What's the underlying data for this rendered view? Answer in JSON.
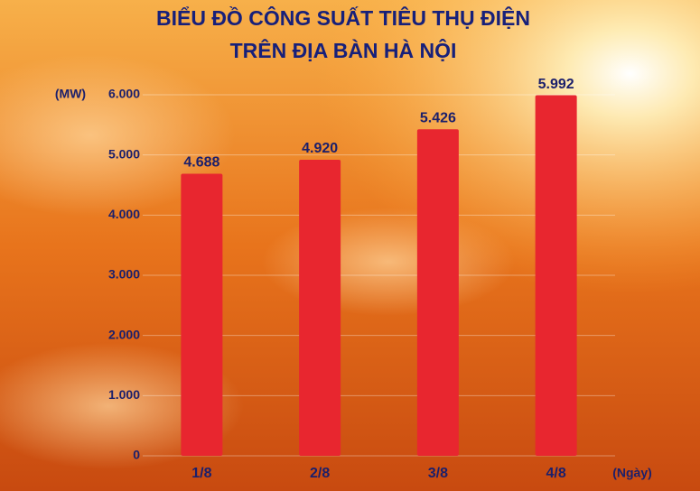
{
  "chart_data": {
    "type": "bar",
    "title_lines": [
      "BIỂU ĐỒ CÔNG SUẤT TIÊU THỤ ĐIỆN",
      "TRÊN ĐỊA BÀN HÀ NỘI"
    ],
    "y_label": "(MW)",
    "x_label": "(Ngày)",
    "categories": [
      "1/8",
      "2/8",
      "3/8",
      "4/8"
    ],
    "values": [
      4688,
      4920,
      5426,
      5992
    ],
    "value_labels": [
      "4.688",
      "4.920",
      "5.426",
      "5.992"
    ],
    "color": "#e8262f",
    "ylim": [
      0,
      6000
    ],
    "yticks": [
      0,
      {
        "value": 1000,
        "label": "1.000"
      },
      {
        "value": 2000,
        "label": "2.000"
      },
      {
        "value": 3000,
        "label": "3.000"
      },
      {
        "value": 4000,
        "label": "4.000"
      },
      {
        "value": 5000,
        "label": "5.000"
      },
      {
        "value": 6000,
        "label": "6.000"
      }
    ],
    "grid": true
  }
}
